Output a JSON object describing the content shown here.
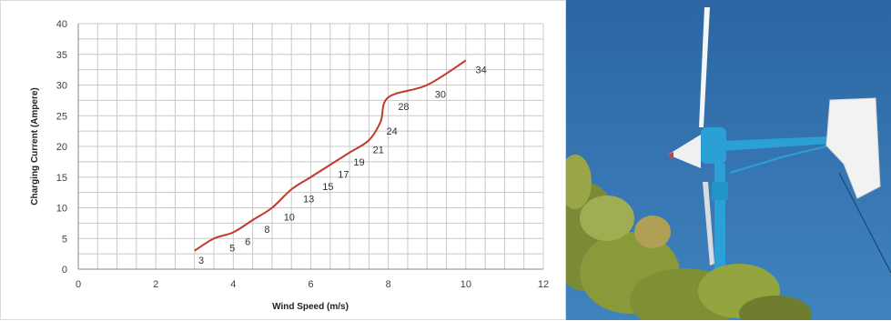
{
  "chart_data": {
    "type": "line",
    "title": "",
    "xlabel": "Wind Speed (m/s)",
    "ylabel": "Charging Current (Ampere)",
    "xlim": [
      0,
      12
    ],
    "ylim": [
      0,
      40
    ],
    "x_ticks": [
      0,
      2,
      4,
      6,
      8,
      10,
      12
    ],
    "y_ticks": [
      0,
      5,
      10,
      15,
      20,
      25,
      30,
      35,
      40
    ],
    "grid": true,
    "legend": "none",
    "series": [
      {
        "color": "#c0392b",
        "points": [
          {
            "x": 3.0,
            "y": 3
          },
          {
            "x": 3.5,
            "y": 5
          },
          {
            "x": 4.0,
            "y": 6
          },
          {
            "x": 4.5,
            "y": 8
          },
          {
            "x": 5.0,
            "y": 10
          },
          {
            "x": 5.5,
            "y": 13
          },
          {
            "x": 6.0,
            "y": 15
          },
          {
            "x": 6.5,
            "y": 17
          },
          {
            "x": 7.0,
            "y": 19
          },
          {
            "x": 7.5,
            "y": 21
          },
          {
            "x": 7.8,
            "y": 24
          },
          {
            "x": 8.0,
            "y": 28
          },
          {
            "x": 9.0,
            "y": 30
          },
          {
            "x": 10.0,
            "y": 34
          }
        ]
      }
    ],
    "data_labels": [
      {
        "x": 3.1,
        "y": 3,
        "text": "3"
      },
      {
        "x": 3.9,
        "y": 5,
        "text": "5"
      },
      {
        "x": 4.3,
        "y": 6,
        "text": "6"
      },
      {
        "x": 4.8,
        "y": 8,
        "text": "8"
      },
      {
        "x": 5.3,
        "y": 10,
        "text": "10"
      },
      {
        "x": 5.8,
        "y": 13,
        "text": "13"
      },
      {
        "x": 6.3,
        "y": 15,
        "text": "15"
      },
      {
        "x": 6.7,
        "y": 17,
        "text": "17"
      },
      {
        "x": 7.1,
        "y": 19,
        "text": "19"
      },
      {
        "x": 7.6,
        "y": 21,
        "text": "21"
      },
      {
        "x": 7.95,
        "y": 24,
        "text": "24"
      },
      {
        "x": 8.25,
        "y": 28,
        "text": "28"
      },
      {
        "x": 9.2,
        "y": 30,
        "text": "30"
      },
      {
        "x": 10.25,
        "y": 34,
        "text": "34"
      }
    ]
  },
  "photo": {
    "sky_color": "#2f6ba8",
    "pole_color": "#2aa0d6",
    "tail_color": "#f2f2f2",
    "foliage_color": "#8a9a3a"
  }
}
